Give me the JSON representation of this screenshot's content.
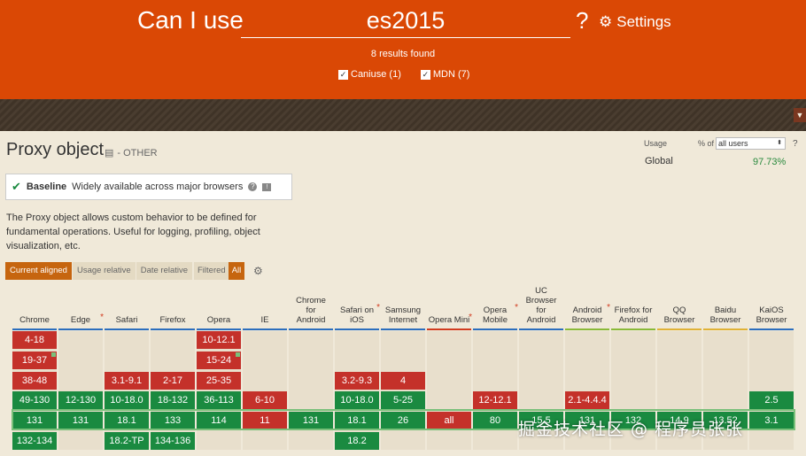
{
  "header": {
    "caniuse_label": "Can I use",
    "search_value": "es2015",
    "help": "?",
    "settings_label": "Settings",
    "results": "8 results found",
    "filters": [
      {
        "label": "Caniuse (1)",
        "checked": true
      },
      {
        "label": "MDN (7)",
        "checked": true
      }
    ]
  },
  "feature": {
    "title": "Proxy object",
    "category": "- OTHER",
    "baseline_bold": "Baseline",
    "baseline_text": "Widely available across major browsers",
    "description": "The Proxy object allows custom behavior to be defined for fundamental operations. Useful for logging, profiling, object visualization, etc."
  },
  "tabs": [
    {
      "label": "Current aligned",
      "active": true
    },
    {
      "label": "Usage relative",
      "active": false
    },
    {
      "label": "Date relative",
      "active": false
    }
  ],
  "filtered": {
    "label": "Filtered",
    "value": "All"
  },
  "usage": {
    "label": "Usage",
    "pct_of": "% of",
    "select": "all users",
    "help": "?",
    "global_label": "Global",
    "global_value": "97.73%"
  },
  "browsers": [
    {
      "name": "Chrome",
      "star": false,
      "color": "#2c6ebd",
      "cells": [
        [
          "4-18",
          "red"
        ],
        [
          "19-37",
          "red"
        ],
        [
          "38-48",
          "red"
        ],
        [
          "49-130",
          "green"
        ],
        [
          "131",
          "green"
        ],
        [
          "132-134",
          "green"
        ]
      ]
    },
    {
      "name": "Edge",
      "star": true,
      "color": "#2c6ebd",
      "cells": [
        [
          "",
          ""
        ],
        [
          "",
          ""
        ],
        [
          "",
          ""
        ],
        [
          "12-130",
          "green"
        ],
        [
          "131",
          "green"
        ],
        [
          "",
          ""
        ]
      ]
    },
    {
      "name": "Safari",
      "star": false,
      "color": "#2c6ebd",
      "cells": [
        [
          "",
          ""
        ],
        [
          "",
          ""
        ],
        [
          "3.1-9.1",
          "red"
        ],
        [
          "10-18.0",
          "green"
        ],
        [
          "18.1",
          "green"
        ],
        [
          "18.2-TP",
          "green"
        ]
      ]
    },
    {
      "name": "Firefox",
      "star": false,
      "color": "#2c6ebd",
      "cells": [
        [
          "",
          ""
        ],
        [
          "",
          ""
        ],
        [
          "2-17",
          "red"
        ],
        [
          "18-132",
          "green"
        ],
        [
          "133",
          "green"
        ],
        [
          "134-136",
          "green"
        ]
      ]
    },
    {
      "name": "Opera",
      "star": false,
      "color": "#2c6ebd",
      "cells": [
        [
          "10-12.1",
          "red"
        ],
        [
          "15-24",
          "red"
        ],
        [
          "25-35",
          "red"
        ],
        [
          "36-113",
          "green"
        ],
        [
          "114",
          "green"
        ],
        [
          "",
          ""
        ]
      ]
    },
    {
      "name": "IE",
      "star": false,
      "color": "#2c6ebd",
      "cells": [
        [
          "",
          ""
        ],
        [
          "",
          ""
        ],
        [
          "",
          ""
        ],
        [
          "6-10",
          "red"
        ],
        [
          "11",
          "red"
        ],
        [
          "",
          ""
        ]
      ]
    },
    {
      "name": "Chrome for Android",
      "star": false,
      "color": "#2c6ebd",
      "cells": [
        [
          "",
          ""
        ],
        [
          "",
          ""
        ],
        [
          "",
          ""
        ],
        [
          "",
          ""
        ],
        [
          "131",
          "green"
        ],
        [
          "",
          ""
        ]
      ]
    },
    {
      "name": "Safari on iOS",
      "star": true,
      "color": "#2c6ebd",
      "cells": [
        [
          "",
          ""
        ],
        [
          "",
          ""
        ],
        [
          "3.2-9.3",
          "red"
        ],
        [
          "10-18.0",
          "green"
        ],
        [
          "18.1",
          "green"
        ],
        [
          "18.2",
          "green"
        ]
      ]
    },
    {
      "name": "Samsung Internet",
      "star": false,
      "color": "#2c6ebd",
      "cells": [
        [
          "",
          ""
        ],
        [
          "",
          ""
        ],
        [
          "4",
          "red"
        ],
        [
          "5-25",
          "green"
        ],
        [
          "26",
          "green"
        ],
        [
          "",
          ""
        ]
      ]
    },
    {
      "name": "Opera Mini",
      "star": true,
      "color": "#d13c20",
      "cells": [
        [
          "",
          ""
        ],
        [
          "",
          ""
        ],
        [
          "",
          ""
        ],
        [
          "",
          ""
        ],
        [
          "all",
          "red"
        ],
        [
          "",
          ""
        ]
      ]
    },
    {
      "name": "Opera Mobile",
      "star": true,
      "color": "#2c6ebd",
      "cells": [
        [
          "",
          ""
        ],
        [
          "",
          ""
        ],
        [
          "",
          ""
        ],
        [
          "12-12.1",
          "red"
        ],
        [
          "80",
          "green"
        ],
        [
          "",
          ""
        ]
      ]
    },
    {
      "name": "UC Browser for Android",
      "star": false,
      "color": "#2c6ebd",
      "cells": [
        [
          "",
          ""
        ],
        [
          "",
          ""
        ],
        [
          "",
          ""
        ],
        [
          "",
          ""
        ],
        [
          "15.5",
          "green"
        ],
        [
          "",
          ""
        ]
      ]
    },
    {
      "name": "Android Browser",
      "star": true,
      "color": "#8ab938",
      "cells": [
        [
          "",
          ""
        ],
        [
          "",
          ""
        ],
        [
          "",
          ""
        ],
        [
          "2.1-4.4.4",
          "red"
        ],
        [
          "131",
          "green"
        ],
        [
          "",
          ""
        ]
      ]
    },
    {
      "name": "Firefox for Android",
      "star": false,
      "color": "#8ab938",
      "cells": [
        [
          "",
          ""
        ],
        [
          "",
          ""
        ],
        [
          "",
          ""
        ],
        [
          "",
          ""
        ],
        [
          "132",
          "green"
        ],
        [
          "",
          ""
        ]
      ]
    },
    {
      "name": "QQ Browser",
      "star": false,
      "color": "#e0b236",
      "cells": [
        [
          "",
          ""
        ],
        [
          "",
          ""
        ],
        [
          "",
          ""
        ],
        [
          "",
          ""
        ],
        [
          "14.9",
          "green"
        ],
        [
          "",
          ""
        ]
      ]
    },
    {
      "name": "Baidu Browser",
      "star": false,
      "color": "#e0b236",
      "cells": [
        [
          "",
          ""
        ],
        [
          "",
          ""
        ],
        [
          "",
          ""
        ],
        [
          "",
          ""
        ],
        [
          "13.52",
          "green"
        ],
        [
          "",
          ""
        ]
      ]
    },
    {
      "name": "KaiOS Browser",
      "star": false,
      "color": "#2c6ebd",
      "cells": [
        [
          "",
          ""
        ],
        [
          "",
          ""
        ],
        [
          "",
          ""
        ],
        [
          "2.5",
          "green"
        ],
        [
          "3.1",
          "green"
        ],
        [
          "",
          ""
        ]
      ]
    }
  ],
  "watermark": "掘金技术社区 @ 程序员张张"
}
